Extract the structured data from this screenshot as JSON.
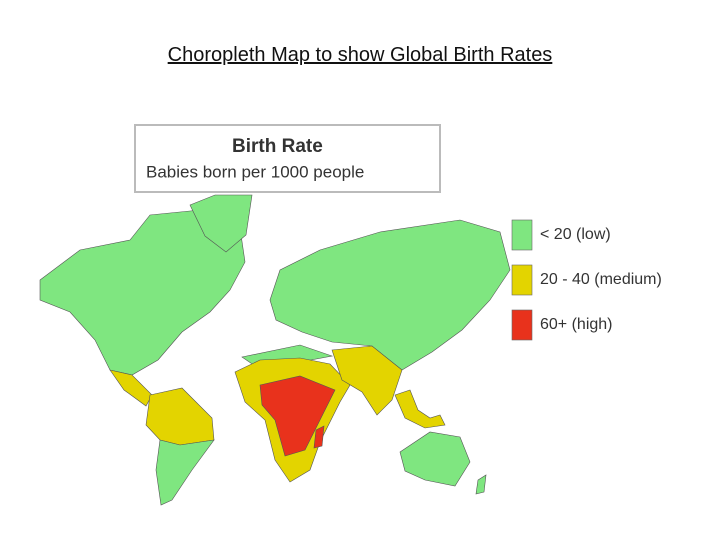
{
  "title": "Choropleth Map to show Global Birth Rates",
  "map": {
    "legend_title": "Birth Rate",
    "legend_subtitle": "Babies born per 1000 people",
    "legend": [
      {
        "label": "< 20 (low)",
        "color": "#7fe680"
      },
      {
        "label": "20 - 40 (medium)",
        "color": "#e3d400"
      },
      {
        "label": "60+ (high)",
        "color": "#e8321c"
      }
    ]
  }
}
